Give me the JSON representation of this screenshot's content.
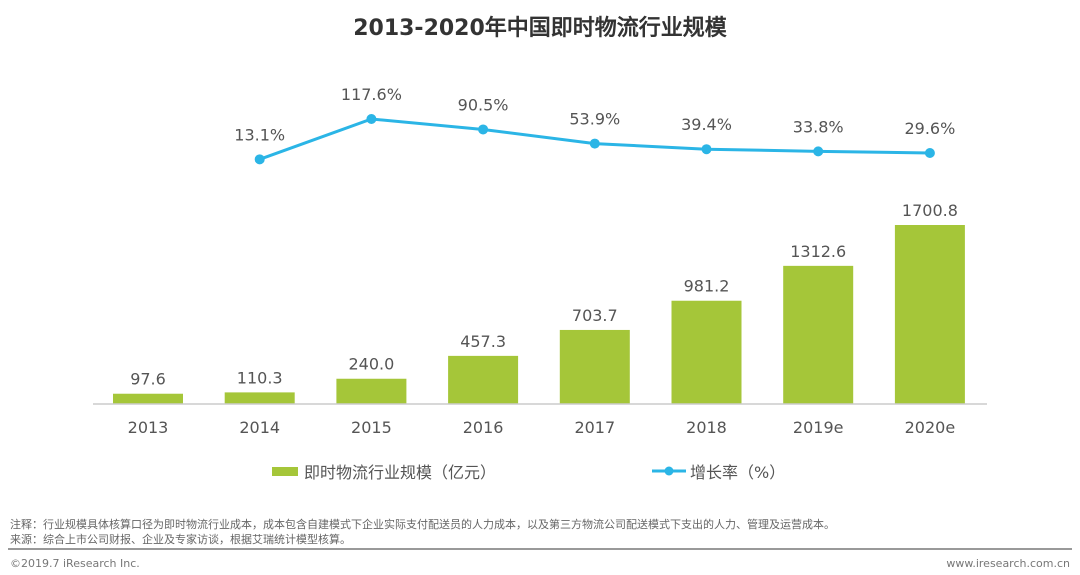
{
  "chart_data": {
    "type": "bar+line",
    "title": "2013-2020年中国即时物流行业规模",
    "categories": [
      "2013",
      "2014",
      "2015",
      "2016",
      "2017",
      "2018",
      "2019e",
      "2020e"
    ],
    "series": [
      {
        "name": "即时物流行业规模（亿元）",
        "type": "bar",
        "color": "#a5c639",
        "values": [
          97.6,
          110.3,
          240.0,
          457.3,
          703.7,
          981.2,
          1312.6,
          1700.8
        ],
        "labels": [
          "97.6",
          "110.3",
          "240.0",
          "457.3",
          "703.7",
          "981.2",
          "1312.6",
          "1700.8"
        ]
      },
      {
        "name": "增长率（%）",
        "type": "line",
        "color": "#2bb5e6",
        "values": [
          null,
          13.1,
          117.6,
          90.5,
          53.9,
          39.4,
          33.8,
          29.6
        ],
        "labels": [
          "",
          "13.1%",
          "117.6%",
          "90.5%",
          "53.9%",
          "39.4%",
          "33.8%",
          "29.6%"
        ]
      }
    ],
    "grid": false,
    "legend": "bottom"
  },
  "notes": {
    "note": "注释：行业规模具体核算口径为即时物流行业成本，成本包含自建模式下企业实际支付配送员的人力成本，以及第三方物流公司配送模式下支出的人力、管理及运营成本。",
    "source": "来源：综合上市公司财报、企业及专家访谈，根据艾瑞统计模型核算。"
  },
  "footer": {
    "copyright": "©2019.7 iResearch Inc.",
    "url": "www.iresearch.com.cn"
  }
}
